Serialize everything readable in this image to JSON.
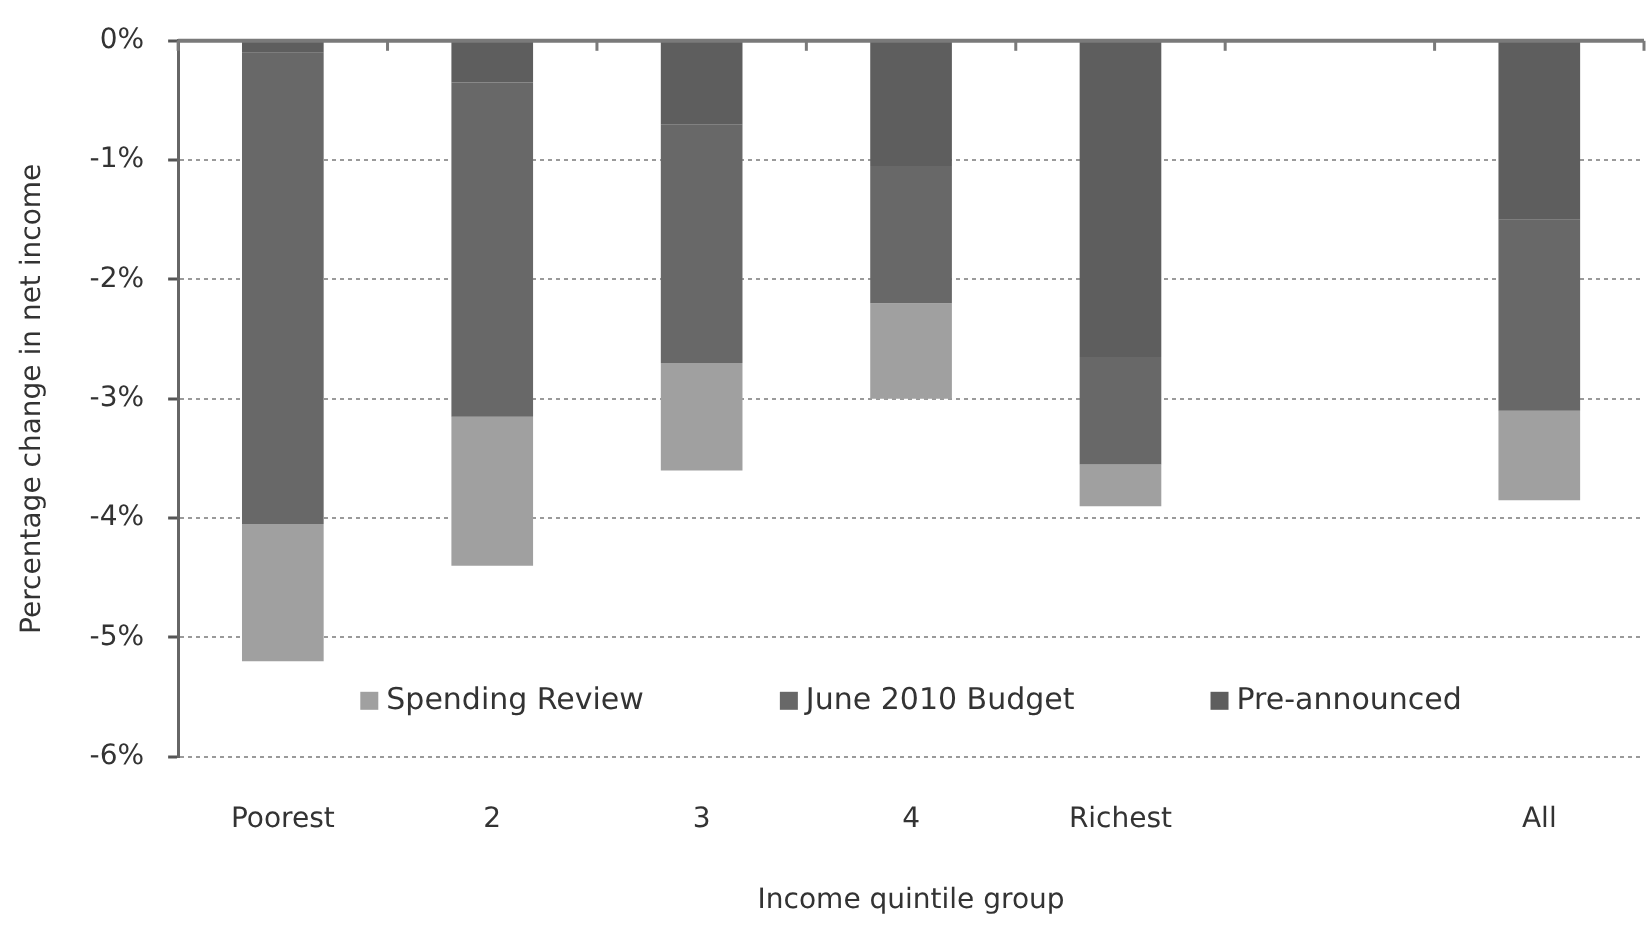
{
  "chart_data": {
    "type": "bar",
    "stacked": true,
    "ylabel": "Percentage change in net income",
    "xlabel": "Income quintile group",
    "categories": [
      "Poorest",
      "2",
      "3",
      "4",
      "Richest",
      null,
      "All"
    ],
    "series": [
      {
        "name": "Pre-announced",
        "color": "#5e5e5e",
        "values": [
          -0.1,
          -0.35,
          -0.7,
          -1.05,
          -2.65,
          null,
          -1.5
        ]
      },
      {
        "name": "June 2010 Budget",
        "color": "#686868",
        "values": [
          -3.95,
          -2.8,
          -2.0,
          -1.15,
          -0.9,
          null,
          -1.6
        ]
      },
      {
        "name": "Spending Review",
        "color": "#a0a0a0",
        "values": [
          -1.15,
          -1.25,
          -0.9,
          -0.8,
          -0.35,
          null,
          -0.75
        ]
      }
    ],
    "ylim": [
      -6,
      0
    ],
    "yticks": [
      {
        "value": 0,
        "label": "0%"
      },
      {
        "value": -1,
        "label": "-1%"
      },
      {
        "value": -2,
        "label": "-2%"
      },
      {
        "value": -3,
        "label": "-3%"
      },
      {
        "value": -4,
        "label": "-4%"
      },
      {
        "value": -5,
        "label": "-5%"
      },
      {
        "value": -6,
        "label": "-6%"
      }
    ],
    "grid": "y",
    "legend": "bottom"
  }
}
